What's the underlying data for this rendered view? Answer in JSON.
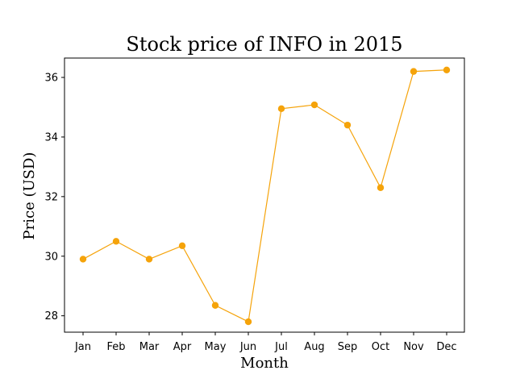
{
  "chart_data": {
    "type": "line",
    "title": "Stock price of INFO in 2015",
    "xlabel": "Month",
    "ylabel": "Price (USD)",
    "categories": [
      "Jan",
      "Feb",
      "Mar",
      "Apr",
      "May",
      "Jun",
      "Jul",
      "Aug",
      "Sep",
      "Oct",
      "Nov",
      "Dec"
    ],
    "values": [
      29.9,
      30.5,
      29.9,
      30.35,
      28.35,
      27.8,
      34.95,
      35.08,
      34.4,
      32.3,
      36.2,
      36.25
    ],
    "ylim": [
      27.45,
      36.65
    ],
    "yticks": [
      "28",
      "30",
      "32",
      "34",
      "36"
    ],
    "line_color": "#f5a30a",
    "marker": "circle",
    "grid": false
  }
}
